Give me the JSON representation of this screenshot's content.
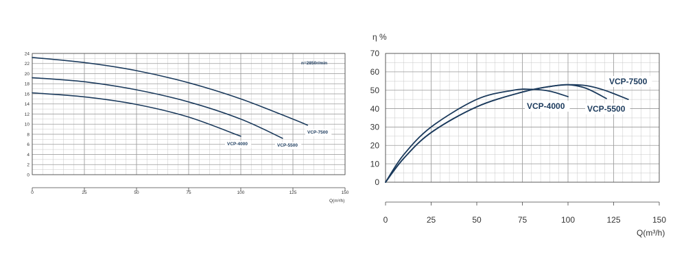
{
  "colors": {
    "curve": "#1b3a5c",
    "grid": "#c7c7c7",
    "axis": "#444444",
    "text": "#333333",
    "label_bg": "#ffffff"
  },
  "chart_data": [
    {
      "type": "line",
      "title": "",
      "xlabel": "Q(m³/h)",
      "ylabel": "",
      "annotation": "n=2850r/min",
      "xlim": [
        0,
        150
      ],
      "ylim": [
        0,
        24
      ],
      "xticks": [
        0,
        25,
        50,
        75,
        100,
        125,
        150
      ],
      "yticks": [
        0,
        2,
        4,
        6,
        8,
        10,
        12,
        14,
        16,
        18,
        20,
        22,
        24
      ],
      "grid": true,
      "series": [
        {
          "name": "VCP-7500",
          "x": [
            0,
            25,
            50,
            75,
            100,
            125,
            132
          ],
          "y": [
            23.2,
            22.2,
            20.6,
            18.2,
            15.0,
            11.0,
            9.8
          ]
        },
        {
          "name": "VCP-5500",
          "x": [
            0,
            25,
            50,
            75,
            100,
            120
          ],
          "y": [
            19.2,
            18.4,
            16.8,
            14.4,
            11.0,
            7.2
          ]
        },
        {
          "name": "VCP-4000",
          "x": [
            0,
            25,
            50,
            75,
            100
          ],
          "y": [
            16.2,
            15.4,
            13.9,
            11.4,
            7.6
          ]
        }
      ]
    },
    {
      "type": "line",
      "title": "",
      "xlabel": "Q(m³/h)",
      "ylabel": "η %",
      "xlim": [
        0,
        150
      ],
      "ylim": [
        0,
        70
      ],
      "xticks": [
        0,
        25,
        50,
        75,
        100,
        125,
        150
      ],
      "yticks": [
        0,
        10,
        20,
        30,
        40,
        50,
        60,
        70
      ],
      "grid": true,
      "series": [
        {
          "name": "VCP-7500",
          "x": [
            0,
            10,
            25,
            50,
            75,
            90,
            100,
            110,
            120,
            133
          ],
          "y": [
            0,
            13,
            27,
            41,
            49,
            52,
            53,
            52.5,
            50,
            45
          ]
        },
        {
          "name": "VCP-5500",
          "x": [
            0,
            10,
            25,
            50,
            75,
            90,
            100,
            110,
            121
          ],
          "y": [
            0,
            13,
            27,
            41,
            49,
            52,
            53,
            51,
            45.5
          ]
        },
        {
          "name": "VCP-4000",
          "x": [
            0,
            10,
            25,
            50,
            70,
            80,
            90,
            100
          ],
          "y": [
            0,
            15,
            30,
            45,
            50,
            50.5,
            49.5,
            46.5
          ]
        }
      ]
    }
  ]
}
